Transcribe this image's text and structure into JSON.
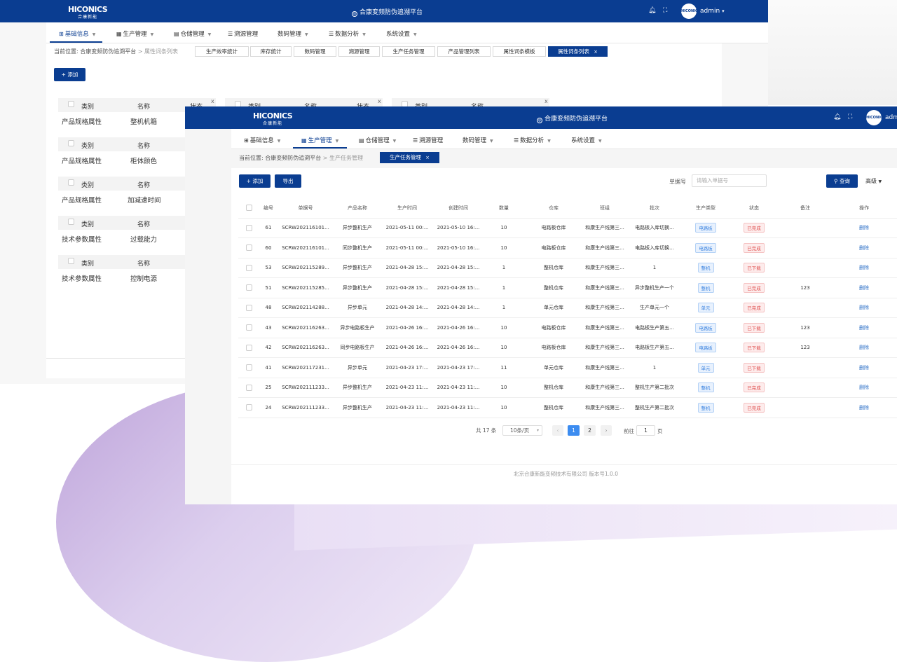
{
  "platform_title": "合康变频防伪追溯平台",
  "logo": {
    "main": "HICONICS",
    "sub": "合康新能"
  },
  "user": {
    "name": "admin",
    "avatar_text": "HICONICS"
  },
  "nav": [
    {
      "label": "基础信息"
    },
    {
      "label": "生产管理"
    },
    {
      "label": "仓储管理"
    },
    {
      "label": "溯源管理"
    },
    {
      "label": "数码管理"
    },
    {
      "label": "数据分析"
    },
    {
      "label": "系统设置"
    }
  ],
  "back_window": {
    "breadcrumb": {
      "prefix": "当前位置:",
      "root": "合康变频防伪追溯平台",
      "sep": ">",
      "current": "属性词条列表"
    },
    "tabs": [
      "生产效率统计",
      "库存统计",
      "数码管理",
      "溯源管理",
      "生产任务管理",
      "产品管理列表",
      "属性词条模板",
      "属性词条列表"
    ],
    "add_button": "+ 添加",
    "card_headers": {
      "category": "类别",
      "name": "名称",
      "status": "状态"
    },
    "cards": [
      {
        "category": "产品规格属性",
        "name": "整机机箱"
      },
      {
        "category": "产品规格属性",
        "name": "柜体颜色"
      },
      {
        "category": "产品规格属性",
        "name": "加减速时间"
      },
      {
        "category": "技术参数属性",
        "name": "过载能力"
      },
      {
        "category": "技术参数属性",
        "name": "控制电源"
      }
    ]
  },
  "front_window": {
    "breadcrumb": {
      "prefix": "当前位置:",
      "root": "合康变频防伪追溯平台",
      "sep": ">",
      "current": "生产任务管理"
    },
    "active_tab": "生产任务管理",
    "buttons": {
      "add": "+ 添加",
      "export": "导出",
      "query": "查询",
      "advanced": "高级"
    },
    "search": {
      "label": "单据号",
      "placeholder": "请输入单据号"
    },
    "columns": [
      "编号",
      "单据号",
      "产品名称",
      "生产时间",
      "创建时间",
      "数量",
      "仓库",
      "班组",
      "批次",
      "生产类型",
      "状态",
      "备注",
      "操作"
    ],
    "rows": [
      {
        "id": "61",
        "doc": "SCRW202116101...",
        "product": "异步整机生产",
        "prod_time": "2021-05-11 00:...",
        "created": "2021-05-10 16:...",
        "qty": "10",
        "warehouse": "电路板仓库",
        "team": "和康生产线第三...",
        "batch": "电路板入库切换...",
        "type": "电路板",
        "status": "已完成",
        "note": "",
        "op": "删除"
      },
      {
        "id": "60",
        "doc": "SCRW202116101...",
        "product": "同步整机生产",
        "prod_time": "2021-05-11 00:...",
        "created": "2021-05-10 16:...",
        "qty": "10",
        "warehouse": "电路板仓库",
        "team": "和康生产线第三...",
        "batch": "电路板入库切换...",
        "type": "电路板",
        "status": "已完成",
        "note": "",
        "op": "删除"
      },
      {
        "id": "53",
        "doc": "SCRW202115289...",
        "product": "异步整机生产",
        "prod_time": "2021-04-28 15:...",
        "created": "2021-04-28 15:...",
        "qty": "1",
        "warehouse": "整机仓库",
        "team": "和康生产线第三...",
        "batch": "1",
        "type": "整机",
        "status": "已下载",
        "note": "",
        "op": "删除"
      },
      {
        "id": "51",
        "doc": "SCRW202115285...",
        "product": "异步整机生产",
        "prod_time": "2021-04-28 15:...",
        "created": "2021-04-28 15:...",
        "qty": "1",
        "warehouse": "整机仓库",
        "team": "和康生产线第三...",
        "batch": "异步整机生产一个",
        "type": "整机",
        "status": "已完成",
        "note": "123",
        "op": "删除"
      },
      {
        "id": "48",
        "doc": "SCRW202114288...",
        "product": "异步单元",
        "prod_time": "2021-04-28 14:...",
        "created": "2021-04-28 14:...",
        "qty": "1",
        "warehouse": "单元仓库",
        "team": "和康生产线第三...",
        "batch": "生产单元一个",
        "type": "单元",
        "status": "已完成",
        "note": "",
        "op": "删除"
      },
      {
        "id": "43",
        "doc": "SCRW202116263...",
        "product": "异步电路板生产",
        "prod_time": "2021-04-26 16:...",
        "created": "2021-04-26 16:...",
        "qty": "10",
        "warehouse": "电路板仓库",
        "team": "和康生产线第三...",
        "batch": "电路板生产第五...",
        "type": "电路板",
        "status": "已下载",
        "note": "123",
        "op": "删除"
      },
      {
        "id": "42",
        "doc": "SCRW202116263...",
        "product": "同步电路板生产",
        "prod_time": "2021-04-26 16:...",
        "created": "2021-04-26 16:...",
        "qty": "10",
        "warehouse": "电路板仓库",
        "team": "和康生产线第三...",
        "batch": "电路板生产第五...",
        "type": "电路板",
        "status": "已下载",
        "note": "123",
        "op": "删除"
      },
      {
        "id": "41",
        "doc": "SCRW202117231...",
        "product": "异步单元",
        "prod_time": "2021-04-23 17:...",
        "created": "2021-04-23 17:...",
        "qty": "11",
        "warehouse": "单元仓库",
        "team": "和康生产线第三...",
        "batch": "1",
        "type": "单元",
        "status": "已下载",
        "note": "",
        "op": "删除"
      },
      {
        "id": "25",
        "doc": "SCRW202111233...",
        "product": "异步整机生产",
        "prod_time": "2021-04-23 11:...",
        "created": "2021-04-23 11:...",
        "qty": "10",
        "warehouse": "整机仓库",
        "team": "和康生产线第三...",
        "batch": "整机生产第二批次",
        "type": "整机",
        "status": "已完成",
        "note": "",
        "op": "删除"
      },
      {
        "id": "24",
        "doc": "SCRW202111233...",
        "product": "异步整机生产",
        "prod_time": "2021-04-23 11:...",
        "created": "2021-04-23 11:...",
        "qty": "10",
        "warehouse": "整机仓库",
        "team": "和康生产线第三...",
        "batch": "整机生产第二批次",
        "type": "整机",
        "status": "已完成",
        "note": "",
        "op": "删除"
      }
    ],
    "pagination": {
      "total": "共 17 条",
      "page_size": "10条/页",
      "pages": [
        "1",
        "2"
      ],
      "goto_label": "前往",
      "goto_value": "1",
      "goto_suffix": "页"
    },
    "footer": "北京合康新能变频技术有限公司 版本号1.0.0"
  },
  "colors": {
    "brand": "#0a3d91",
    "accent_blue": "#3c8cf0",
    "tag_red": "#e0504f"
  }
}
